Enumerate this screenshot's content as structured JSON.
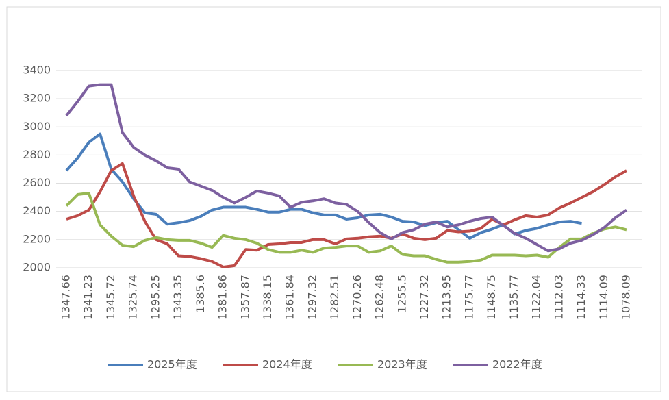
{
  "chart_data": {
    "type": "line",
    "categories": [
      "1347.66",
      null,
      "1341.23",
      null,
      "1345.72",
      null,
      "1325.74",
      null,
      "1295.25",
      null,
      "1343.35",
      null,
      "1385.6",
      null,
      "1381.86",
      null,
      "1357.87",
      null,
      "1338.15",
      null,
      "1361.84",
      null,
      "1297.32",
      null,
      "1282.51",
      null,
      "1270.26",
      null,
      "1262.48",
      null,
      "1255.5",
      null,
      "1227.32",
      null,
      "1213.95",
      null,
      "1175.77",
      null,
      "1148.75",
      null,
      "1135.77",
      null,
      "1122.04",
      null,
      "1112.03",
      null,
      "1114.33",
      null,
      "1114.09",
      null,
      "1078.09"
    ],
    "series": [
      {
        "name": "2025年度",
        "color": "#4a7ebb",
        "values": [
          2690,
          2780,
          2890,
          2950,
          2700,
          2610,
          2490,
          2390,
          2380,
          2310,
          2320,
          2335,
          2365,
          2410,
          2430,
          2430,
          2430,
          2415,
          2395,
          2395,
          2415,
          2415,
          2390,
          2375,
          2375,
          2345,
          2355,
          2375,
          2380,
          2360,
          2330,
          2325,
          2300,
          2320,
          2330,
          2270,
          2210,
          2250,
          2275,
          2305,
          2240,
          2265,
          2280,
          2305,
          2325,
          2330,
          2315,
          null,
          null,
          null,
          null
        ]
      },
      {
        "name": "2024年度",
        "color": "#be4b48",
        "values": [
          2345,
          2370,
          2410,
          2540,
          2690,
          2740,
          2510,
          2330,
          2200,
          2170,
          2085,
          2080,
          2065,
          2045,
          2005,
          2015,
          2130,
          2125,
          2165,
          2170,
          2180,
          2180,
          2200,
          2200,
          2170,
          2205,
          2210,
          2220,
          2225,
          2210,
          2240,
          2210,
          2200,
          2210,
          2265,
          2255,
          2260,
          2280,
          2345,
          2305,
          2340,
          2370,
          2360,
          2375,
          2425,
          2460,
          2500,
          2540,
          2590,
          2645,
          2690
        ]
      },
      {
        "name": "2023年度",
        "color": "#98b954",
        "values": [
          2440,
          2520,
          2530,
          2305,
          2225,
          2160,
          2150,
          2195,
          2215,
          2200,
          2195,
          2195,
          2175,
          2145,
          2230,
          2210,
          2200,
          2175,
          2130,
          2110,
          2110,
          2125,
          2110,
          2140,
          2145,
          2155,
          2155,
          2110,
          2120,
          2155,
          2095,
          2085,
          2085,
          2060,
          2040,
          2040,
          2045,
          2055,
          2090,
          2090,
          2090,
          2085,
          2090,
          2075,
          2145,
          2205,
          2205,
          2245,
          2275,
          2290,
          2270
        ]
      },
      {
        "name": "2022年度",
        "color": "#7d60a0",
        "values": [
          3080,
          3180,
          3290,
          3300,
          3300,
          2960,
          2855,
          2800,
          2760,
          2710,
          2700,
          2610,
          2580,
          2550,
          2500,
          2460,
          2500,
          2545,
          2530,
          2510,
          2430,
          2465,
          2475,
          2490,
          2460,
          2450,
          2400,
          2320,
          2250,
          2205,
          2250,
          2270,
          2310,
          2325,
          2290,
          2305,
          2330,
          2350,
          2360,
          2300,
          2245,
          2210,
          2165,
          2120,
          2135,
          2175,
          2195,
          2235,
          2285,
          2355,
          2410
        ]
      }
    ],
    "ylim": [
      2000,
      3400
    ],
    "yticks": [
      2000,
      2200,
      2400,
      2600,
      2800,
      3000,
      3200,
      3400
    ],
    "grid": true,
    "legend": "bottom"
  }
}
